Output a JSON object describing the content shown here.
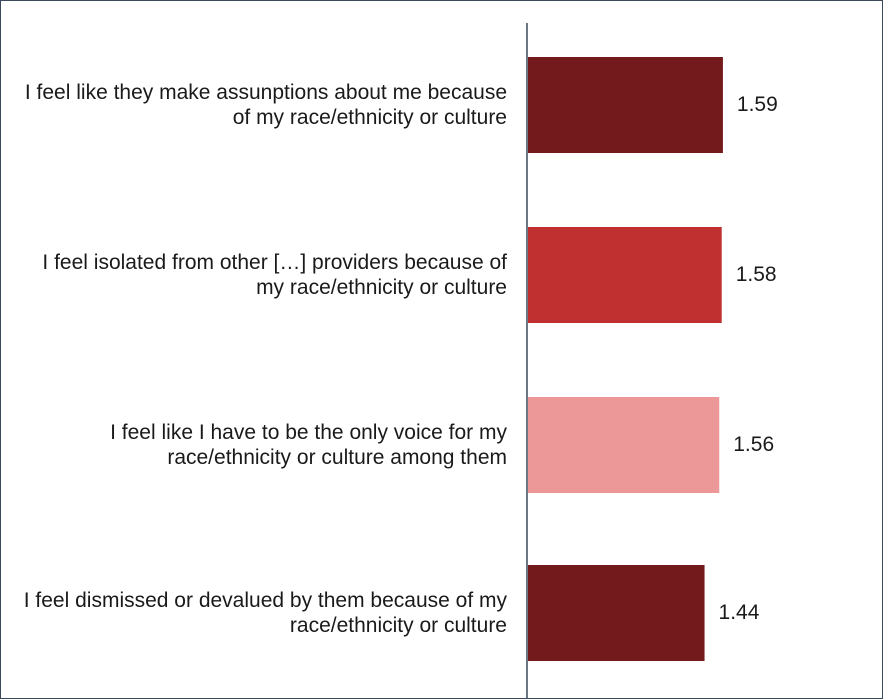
{
  "chart_data": {
    "type": "bar",
    "orientation": "horizontal",
    "categories": [
      "I feel like they make assunptions about me because of my race/ethnicity or culture",
      "I feel isolated from other […] providers because of my race/ethnicity or culture",
      "I feel like I have to be the only voice for my race/ethnicity or culture among them",
      "I feel dismissed or devalued by them because of my race/ethnicity or culture"
    ],
    "values": [
      1.59,
      1.58,
      1.56,
      1.44
    ],
    "value_labels": [
      "1.59",
      "1.58",
      "1.56",
      "1.44"
    ],
    "bar_colors": [
      "#731b1c",
      "#c13030",
      "#ec9898",
      "#731b1c"
    ],
    "xlim": [
      0,
      1.75
    ],
    "grid": false,
    "legend": "none",
    "axis_color": "#3a4a5a"
  }
}
